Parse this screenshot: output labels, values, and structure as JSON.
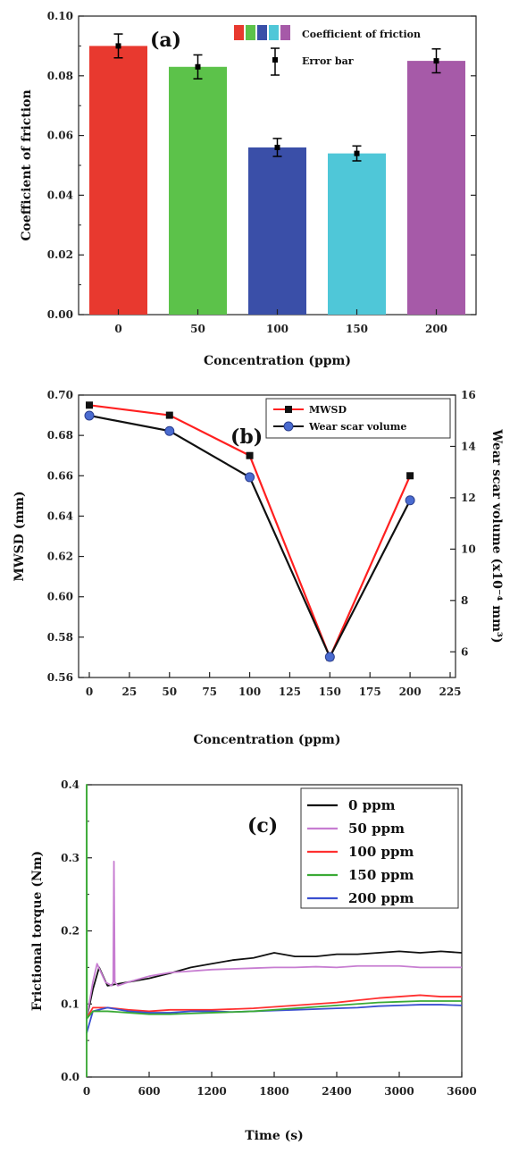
{
  "chart_data": [
    {
      "type": "bar",
      "panel_label": "(a)",
      "categories": [
        "0",
        "50",
        "100",
        "150",
        "200"
      ],
      "values": [
        0.09,
        0.083,
        0.056,
        0.054,
        0.085
      ],
      "errors": [
        0.004,
        0.004,
        0.003,
        0.0025,
        0.004
      ],
      "colors": [
        "#e8392f",
        "#5cc24a",
        "#3a4fa8",
        "#4fc7d8",
        "#a65aa8"
      ],
      "xlabel": "Concentration (ppm)",
      "ylabel": "Coefficient of friction",
      "ylim": [
        0,
        0.1
      ],
      "yticks": [
        "0.00",
        "0.02",
        "0.04",
        "0.06",
        "0.08",
        "0.10"
      ],
      "legend": {
        "bars_label": "Coefficient of friction",
        "error_label": "Error bar",
        "position": "top-right"
      }
    },
    {
      "type": "line",
      "panel_label": "(b)",
      "x": [
        0,
        50,
        100,
        150,
        200
      ],
      "series": [
        {
          "name": "MWSD",
          "axis": "left",
          "values": [
            0.695,
            0.69,
            0.67,
            0.57,
            0.66
          ],
          "color": "#ff2020",
          "marker": "square"
        },
        {
          "name": "Wear scar volume",
          "axis": "right",
          "values": [
            15.2,
            14.6,
            12.8,
            5.8,
            11.9
          ],
          "color": "#111111",
          "marker": "circle"
        }
      ],
      "xlabel": "Concentration (ppm)",
      "ylabel": "MWSD (mm)",
      "y2label": "Wear scar volume (x10⁻⁴ mm³)",
      "xlim": [
        0,
        225
      ],
      "xticks": [
        "0",
        "25",
        "50",
        "75",
        "100",
        "125",
        "150",
        "175",
        "200",
        "225"
      ],
      "ylim": [
        0.56,
        0.7
      ],
      "yticks": [
        "0.56",
        "0.58",
        "0.60",
        "0.62",
        "0.64",
        "0.66",
        "0.68",
        "0.70"
      ],
      "y2lim": [
        5,
        16
      ],
      "y2ticks": [
        "6",
        "8",
        "10",
        "12",
        "14",
        "16"
      ],
      "legend_position": "top-right"
    },
    {
      "type": "line",
      "panel_label": "(c)",
      "series": [
        {
          "name": "0 ppm",
          "color": "#111111",
          "x": [
            0,
            60,
            120,
            200,
            400,
            600,
            800,
            1000,
            1200,
            1400,
            1600,
            1800,
            2000,
            2200,
            2400,
            2600,
            2800,
            3000,
            3200,
            3400,
            3600
          ],
          "values": [
            0.08,
            0.12,
            0.15,
            0.125,
            0.13,
            0.135,
            0.142,
            0.15,
            0.155,
            0.16,
            0.163,
            0.17,
            0.165,
            0.165,
            0.168,
            0.168,
            0.17,
            0.172,
            0.17,
            0.172,
            0.17
          ]
        },
        {
          "name": "50 ppm",
          "color": "#c77dd1",
          "x": [
            0,
            60,
            100,
            180,
            240,
            255,
            262,
            270,
            300,
            400,
            600,
            800,
            1000,
            1200,
            1400,
            1600,
            1800,
            2000,
            2200,
            2400,
            2600,
            2800,
            3000,
            3200,
            3400,
            3600
          ],
          "values": [
            0.08,
            0.13,
            0.155,
            0.13,
            0.125,
            0.13,
            0.295,
            0.13,
            0.125,
            0.13,
            0.138,
            0.143,
            0.145,
            0.147,
            0.148,
            0.149,
            0.15,
            0.15,
            0.151,
            0.15,
            0.152,
            0.152,
            0.152,
            0.15,
            0.15,
            0.15
          ]
        },
        {
          "name": "100 ppm",
          "color": "#ff3030",
          "x": [
            0,
            60,
            200,
            400,
            600,
            800,
            1000,
            1200,
            1400,
            1600,
            1800,
            2000,
            2200,
            2400,
            2600,
            2800,
            3000,
            3200,
            3400,
            3600
          ],
          "values": [
            0.08,
            0.095,
            0.095,
            0.092,
            0.09,
            0.092,
            0.092,
            0.092,
            0.093,
            0.094,
            0.096,
            0.098,
            0.1,
            0.102,
            0.105,
            0.108,
            0.11,
            0.112,
            0.11,
            0.11
          ]
        },
        {
          "name": "150 ppm",
          "color": "#3aaa35",
          "x": [
            0,
            0,
            1,
            3,
            60,
            200,
            400,
            600,
            800,
            1000,
            1200,
            1400,
            1600,
            1800,
            2000,
            2200,
            2400,
            2600,
            2800,
            3000,
            3200,
            3400,
            3600
          ],
          "values": [
            0.0,
            0.4,
            0.4,
            0.08,
            0.09,
            0.09,
            0.088,
            0.086,
            0.086,
            0.087,
            0.088,
            0.089,
            0.09,
            0.092,
            0.094,
            0.096,
            0.098,
            0.1,
            0.102,
            0.103,
            0.104,
            0.104,
            0.104
          ]
        },
        {
          "name": "200 ppm",
          "color": "#3a4fd0",
          "x": [
            0,
            60,
            200,
            400,
            600,
            800,
            1000,
            1200,
            1400,
            1600,
            1800,
            2000,
            2200,
            2400,
            2600,
            2800,
            3000,
            3200,
            3400,
            3600
          ],
          "values": [
            0.06,
            0.09,
            0.095,
            0.09,
            0.088,
            0.088,
            0.09,
            0.09,
            0.089,
            0.09,
            0.091,
            0.092,
            0.093,
            0.094,
            0.095,
            0.097,
            0.098,
            0.099,
            0.099,
            0.098
          ]
        }
      ],
      "xlabel": "Time (s)",
      "ylabel": "Frictional torque (Nm)",
      "xlim": [
        0,
        3600
      ],
      "xticks": [
        "0",
        "600",
        "1200",
        "1800",
        "2400",
        "3000",
        "3600"
      ],
      "ylim": [
        0,
        0.4
      ],
      "yticks": [
        "0.0",
        "0.1",
        "0.2",
        "0.3",
        "0.4"
      ],
      "legend_position": "top-right"
    }
  ]
}
